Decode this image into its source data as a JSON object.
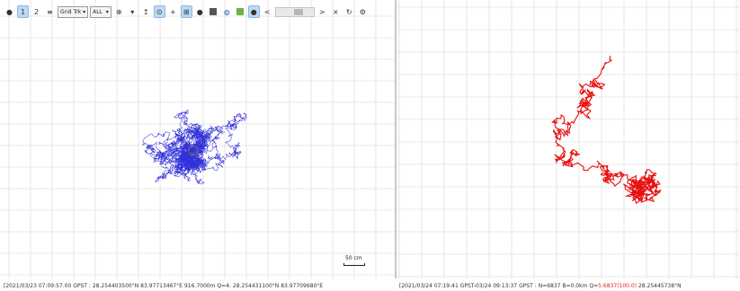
{
  "toolbar": {
    "track_mode_select": "Grid Trk",
    "filter_select": "ALL",
    "scroll_left_arrow": "<",
    "scroll_right_arrow": ">",
    "close_label": "×"
  },
  "left_view": {
    "scale_label": "50 cm",
    "track_color": "#1a1ad6",
    "status": {
      "datetime": "[2021/03/23 07:09:57.00 GPST",
      "sep1": ":",
      "lat": "28.254403500°N",
      "lon": "83.97713467°E",
      "height": "916.7000m",
      "quality": "Q=4:",
      "lat2": "28.254431100°N",
      "lon2": "83.97709680°E"
    }
  },
  "right_view": {
    "track_color": "#e81010",
    "status": {
      "datetime": "[2021/03/24 07:19:41 GPST-03/24 09:13:37 GPST",
      "sep": ":",
      "count": "N=6837 B=0.0km",
      "quality_label": "Q=",
      "quality_value": "5:6837(100.0)",
      "lat": "28.25445738°N"
    }
  }
}
